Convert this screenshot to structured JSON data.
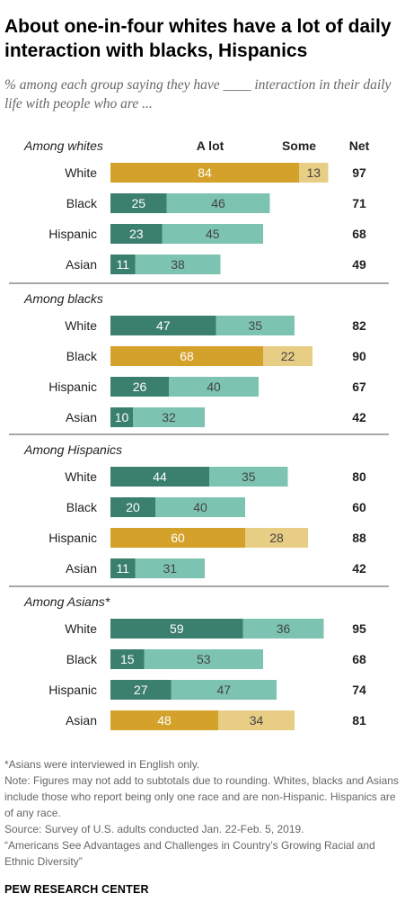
{
  "title": "About one-in-four whites have a lot of daily interaction with blacks, Hispanics",
  "subtitle": "% among each group saying they have ____ interaction in their daily life with people who are ...",
  "colors": {
    "other_a_lot": "#3b7f6e",
    "other_some": "#7cc4b1",
    "own_a_lot": "#d4a22b",
    "own_some": "#e8cd85",
    "text_light": "#ffffff",
    "text_dark": "#444444",
    "divider": "#888888"
  },
  "chart_data": {
    "type": "bar",
    "stacked": true,
    "orientation": "horizontal",
    "column_headers": {
      "a_lot": "A lot",
      "some": "Some",
      "net": "Net"
    },
    "groups": [
      {
        "label": "Among whites",
        "rows": [
          {
            "category": "White",
            "a_lot": 84,
            "some": 13,
            "net": 97,
            "own_group": true
          },
          {
            "category": "Black",
            "a_lot": 25,
            "some": 46,
            "net": 71,
            "own_group": false
          },
          {
            "category": "Hispanic",
            "a_lot": 23,
            "some": 45,
            "net": 68,
            "own_group": false
          },
          {
            "category": "Asian",
            "a_lot": 11,
            "some": 38,
            "net": 49,
            "own_group": false
          }
        ]
      },
      {
        "label": "Among blacks",
        "rows": [
          {
            "category": "White",
            "a_lot": 47,
            "some": 35,
            "net": 82,
            "own_group": false
          },
          {
            "category": "Black",
            "a_lot": 68,
            "some": 22,
            "net": 90,
            "own_group": true
          },
          {
            "category": "Hispanic",
            "a_lot": 26,
            "some": 40,
            "net": 67,
            "own_group": false
          },
          {
            "category": "Asian",
            "a_lot": 10,
            "some": 32,
            "net": 42,
            "own_group": false
          }
        ]
      },
      {
        "label": "Among Hispanics",
        "rows": [
          {
            "category": "White",
            "a_lot": 44,
            "some": 35,
            "net": 80,
            "own_group": false
          },
          {
            "category": "Black",
            "a_lot": 20,
            "some": 40,
            "net": 60,
            "own_group": false
          },
          {
            "category": "Hispanic",
            "a_lot": 60,
            "some": 28,
            "net": 88,
            "own_group": true
          },
          {
            "category": "Asian",
            "a_lot": 11,
            "some": 31,
            "net": 42,
            "own_group": false
          }
        ]
      },
      {
        "label": "Among Asians*",
        "rows": [
          {
            "category": "White",
            "a_lot": 59,
            "some": 36,
            "net": 95,
            "own_group": false
          },
          {
            "category": "Black",
            "a_lot": 15,
            "some": 53,
            "net": 68,
            "own_group": false
          },
          {
            "category": "Hispanic",
            "a_lot": 27,
            "some": 47,
            "net": 74,
            "own_group": false
          },
          {
            "category": "Asian",
            "a_lot": 48,
            "some": 34,
            "net": 81,
            "own_group": true
          }
        ]
      }
    ]
  },
  "notes": [
    "*Asians were interviewed in English only.",
    "Note: Figures may not add to subtotals due to rounding. Whites, blacks and Asians include those who report being only one race and are non-Hispanic. Hispanics are of any race.",
    "Source: Survey of U.S. adults conducted Jan. 22-Feb. 5, 2019.",
    "“Americans See Advantages and Challenges in Country’s Growing Racial and Ethnic Diversity”"
  ],
  "source_org": "PEW RESEARCH CENTER"
}
